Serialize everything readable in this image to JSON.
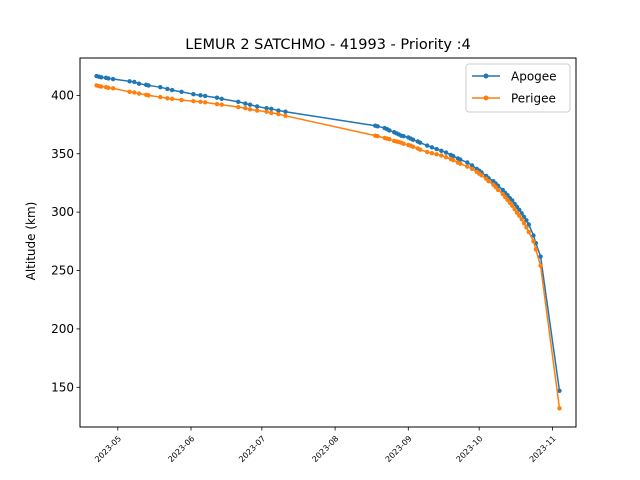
{
  "chart_data": {
    "type": "line",
    "title": "LEMUR 2 SATCHMO - 41993 - Priority :4",
    "xlabel": "",
    "ylabel": "Altitude (km)",
    "x_type": "date",
    "xlim": [
      "2023-04-15",
      "2023-11-11"
    ],
    "ylim": [
      116,
      432
    ],
    "xticks": [
      "2023-05-01",
      "2023-06-01",
      "2023-07-01",
      "2023-08-01",
      "2023-09-01",
      "2023-10-01",
      "2023-11-01"
    ],
    "xtick_labels": [
      "2023-05",
      "2023-06",
      "2023-07",
      "2023-08",
      "2023-09",
      "2023-10",
      "2023-11"
    ],
    "yticks": [
      150,
      200,
      250,
      300,
      350,
      400
    ],
    "ytick_labels": [
      "150",
      "200",
      "250",
      "300",
      "350",
      "400"
    ],
    "grid": false,
    "legend_position": "top-right",
    "series": [
      {
        "name": "Apogee",
        "color": "#1f77b4",
        "marker": "circle",
        "points": [
          [
            "2023-04-22",
            416.5
          ],
          [
            "2023-04-23",
            416.0
          ],
          [
            "2023-04-24",
            415.5
          ],
          [
            "2023-04-26",
            415.0
          ],
          [
            "2023-04-27",
            414.5
          ],
          [
            "2023-04-29",
            414.0
          ],
          [
            "2023-05-06",
            412.0
          ],
          [
            "2023-05-08",
            411.5
          ],
          [
            "2023-05-10",
            410.0
          ],
          [
            "2023-05-13",
            409.0
          ],
          [
            "2023-05-14",
            408.5
          ],
          [
            "2023-05-19",
            407.0
          ],
          [
            "2023-05-22",
            405.5
          ],
          [
            "2023-05-24",
            404.5
          ],
          [
            "2023-05-28",
            403.0
          ],
          [
            "2023-06-02",
            401.0
          ],
          [
            "2023-06-05",
            400.0
          ],
          [
            "2023-06-07",
            399.5
          ],
          [
            "2023-06-12",
            398.0
          ],
          [
            "2023-06-14",
            397.0
          ],
          [
            "2023-06-21",
            394.5
          ],
          [
            "2023-06-24",
            393.0
          ],
          [
            "2023-06-26",
            392.0
          ],
          [
            "2023-06-29",
            390.5
          ],
          [
            "2023-07-03",
            389.0
          ],
          [
            "2023-07-05",
            388.5
          ],
          [
            "2023-07-08",
            387.0
          ],
          [
            "2023-07-11",
            386.0
          ],
          [
            "2023-08-18",
            374.0
          ],
          [
            "2023-08-19",
            373.5
          ],
          [
            "2023-08-22",
            372.0
          ],
          [
            "2023-08-23",
            371.0
          ],
          [
            "2023-08-24",
            370.0
          ],
          [
            "2023-08-26",
            368.5
          ],
          [
            "2023-08-27",
            367.5
          ],
          [
            "2023-08-28",
            366.5
          ],
          [
            "2023-08-29",
            365.5
          ],
          [
            "2023-08-30",
            365.0
          ],
          [
            "2023-09-01",
            364.0
          ],
          [
            "2023-09-02",
            363.0
          ],
          [
            "2023-09-03",
            362.0
          ],
          [
            "2023-09-05",
            360.5
          ],
          [
            "2023-09-06",
            359.5
          ],
          [
            "2023-09-09",
            357.0
          ],
          [
            "2023-09-11",
            355.5
          ],
          [
            "2023-09-13",
            354.0
          ],
          [
            "2023-09-15",
            352.5
          ],
          [
            "2023-09-17",
            351.0
          ],
          [
            "2023-09-19",
            349.0
          ],
          [
            "2023-09-20",
            348.0
          ],
          [
            "2023-09-22",
            346.0
          ],
          [
            "2023-09-23",
            345.0
          ],
          [
            "2023-09-26",
            342.5
          ],
          [
            "2023-09-28",
            340.0
          ],
          [
            "2023-09-30",
            337.0
          ],
          [
            "2023-10-01",
            335.5
          ],
          [
            "2023-10-02",
            334.0
          ],
          [
            "2023-10-04",
            331.0
          ],
          [
            "2023-10-05",
            329.0
          ],
          [
            "2023-10-07",
            326.5
          ],
          [
            "2023-10-08",
            324.5
          ],
          [
            "2023-10-09",
            322.5
          ],
          [
            "2023-10-11",
            319.0
          ],
          [
            "2023-10-12",
            316.5
          ],
          [
            "2023-10-13",
            314.5
          ],
          [
            "2023-10-14",
            312.0
          ],
          [
            "2023-10-15",
            310.0
          ],
          [
            "2023-10-16",
            307.0
          ],
          [
            "2023-10-17",
            304.5
          ],
          [
            "2023-10-18",
            302.0
          ],
          [
            "2023-10-19",
            299.0
          ],
          [
            "2023-10-20",
            296.0
          ],
          [
            "2023-10-21",
            293.0
          ],
          [
            "2023-10-22",
            289.5
          ],
          [
            "2023-10-24",
            280.0
          ],
          [
            "2023-10-25",
            273.5
          ],
          [
            "2023-10-27",
            262.0
          ],
          [
            "2023-11-04",
            147.0
          ]
        ]
      },
      {
        "name": "Perigee",
        "color": "#ff7f0e",
        "marker": "circle",
        "points": [
          [
            "2023-04-22",
            408.5
          ],
          [
            "2023-04-23",
            408.0
          ],
          [
            "2023-04-24",
            407.5
          ],
          [
            "2023-04-26",
            407.0
          ],
          [
            "2023-04-27",
            406.5
          ],
          [
            "2023-04-29",
            406.0
          ],
          [
            "2023-05-06",
            403.0
          ],
          [
            "2023-05-08",
            402.5
          ],
          [
            "2023-05-10",
            401.5
          ],
          [
            "2023-05-13",
            400.5
          ],
          [
            "2023-05-14",
            400.0
          ],
          [
            "2023-05-19",
            398.5
          ],
          [
            "2023-05-22",
            397.5
          ],
          [
            "2023-05-24",
            397.0
          ],
          [
            "2023-05-28",
            396.0
          ],
          [
            "2023-06-02",
            395.0
          ],
          [
            "2023-06-05",
            394.5
          ],
          [
            "2023-06-07",
            394.0
          ],
          [
            "2023-06-12",
            392.5
          ],
          [
            "2023-06-14",
            392.0
          ],
          [
            "2023-06-21",
            390.0
          ],
          [
            "2023-06-24",
            389.0
          ],
          [
            "2023-06-26",
            388.0
          ],
          [
            "2023-06-29",
            387.0
          ],
          [
            "2023-07-03",
            386.0
          ],
          [
            "2023-07-05",
            385.0
          ],
          [
            "2023-07-08",
            384.0
          ],
          [
            "2023-07-11",
            382.5
          ],
          [
            "2023-08-18",
            365.5
          ],
          [
            "2023-08-19",
            365.0
          ],
          [
            "2023-08-22",
            363.5
          ],
          [
            "2023-08-23",
            363.0
          ],
          [
            "2023-08-24",
            362.5
          ],
          [
            "2023-08-26",
            361.0
          ],
          [
            "2023-08-27",
            360.5
          ],
          [
            "2023-08-28",
            360.0
          ],
          [
            "2023-08-29",
            359.5
          ],
          [
            "2023-08-30",
            358.5
          ],
          [
            "2023-09-01",
            357.5
          ],
          [
            "2023-09-02",
            357.0
          ],
          [
            "2023-09-03",
            356.0
          ],
          [
            "2023-09-05",
            354.5
          ],
          [
            "2023-09-06",
            353.5
          ],
          [
            "2023-09-09",
            351.5
          ],
          [
            "2023-09-11",
            350.5
          ],
          [
            "2023-09-13",
            349.5
          ],
          [
            "2023-09-15",
            348.5
          ],
          [
            "2023-09-17",
            347.0
          ],
          [
            "2023-09-19",
            345.5
          ],
          [
            "2023-09-20",
            344.5
          ],
          [
            "2023-09-22",
            342.5
          ],
          [
            "2023-09-23",
            341.5
          ],
          [
            "2023-09-26",
            339.0
          ],
          [
            "2023-09-28",
            337.0
          ],
          [
            "2023-09-30",
            334.5
          ],
          [
            "2023-10-01",
            333.0
          ],
          [
            "2023-10-02",
            331.5
          ],
          [
            "2023-10-04",
            328.5
          ],
          [
            "2023-10-05",
            326.5
          ],
          [
            "2023-10-07",
            323.5
          ],
          [
            "2023-10-08",
            321.5
          ],
          [
            "2023-10-09",
            319.0
          ],
          [
            "2023-10-11",
            315.5
          ],
          [
            "2023-10-12",
            313.0
          ],
          [
            "2023-10-13",
            310.5
          ],
          [
            "2023-10-14",
            308.0
          ],
          [
            "2023-10-15",
            305.5
          ],
          [
            "2023-10-16",
            302.5
          ],
          [
            "2023-10-17",
            299.5
          ],
          [
            "2023-10-18",
            297.0
          ],
          [
            "2023-10-19",
            294.0
          ],
          [
            "2023-10-20",
            290.5
          ],
          [
            "2023-10-21",
            287.0
          ],
          [
            "2023-10-22",
            283.0
          ],
          [
            "2023-10-24",
            275.0
          ],
          [
            "2023-10-25",
            268.0
          ],
          [
            "2023-10-27",
            254.0
          ],
          [
            "2023-11-04",
            132.0
          ]
        ]
      }
    ]
  }
}
